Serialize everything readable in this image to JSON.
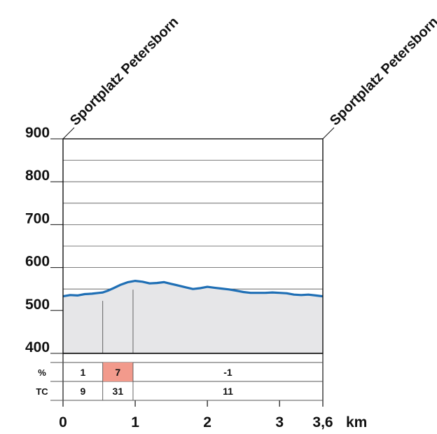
{
  "chart_data": {
    "type": "area",
    "x_unit": "km",
    "ylim": [
      400,
      900
    ],
    "xlim": [
      0,
      3.6
    ],
    "y_ticks": [
      400,
      500,
      600,
      700,
      800,
      900
    ],
    "y_tick_labels": [
      "400",
      "500",
      "600",
      "700",
      "800",
      "900"
    ],
    "x_ticks": [
      0,
      1,
      2,
      3,
      3.6
    ],
    "x_tick_labels": [
      "0",
      "1",
      "2",
      "3",
      "3,6"
    ],
    "waypoints": [
      {
        "x": 0,
        "label": "Sportplatz Petersborn"
      },
      {
        "x": 3.6,
        "label": "Sportplatz Petersborn"
      }
    ],
    "profile": {
      "x": [
        0,
        0.1,
        0.2,
        0.3,
        0.4,
        0.5,
        0.55,
        0.62,
        0.7,
        0.8,
        0.9,
        1.0,
        1.1,
        1.2,
        1.3,
        1.4,
        1.5,
        1.6,
        1.7,
        1.8,
        1.9,
        2.0,
        2.1,
        2.2,
        2.3,
        2.4,
        2.5,
        2.6,
        2.7,
        2.8,
        2.9,
        3.0,
        3.1,
        3.2,
        3.3,
        3.4,
        3.5,
        3.6
      ],
      "y": [
        533,
        536,
        535,
        538,
        539,
        541,
        542,
        546,
        552,
        560,
        566,
        569,
        567,
        563,
        564,
        566,
        562,
        558,
        554,
        550,
        552,
        555,
        553,
        551,
        549,
        546,
        543,
        541,
        541,
        541,
        542,
        541,
        540,
        537,
        536,
        537,
        535,
        533
      ]
    },
    "segments": [
      {
        "from": 0,
        "to": 0.55,
        "grade": "1",
        "tc": "9",
        "highlight": false
      },
      {
        "from": 0.55,
        "to": 0.97,
        "grade": "7",
        "tc": "31",
        "highlight": true
      },
      {
        "from": 0.97,
        "to": 3.6,
        "grade": "-1",
        "tc": "11",
        "highlight": false
      }
    ],
    "row_labels": [
      "%",
      "TC"
    ],
    "colors": {
      "line": "#1f6fb5",
      "fill": "#e6e6e8",
      "highlight": "#f29a8c",
      "grid": "#555555"
    }
  }
}
